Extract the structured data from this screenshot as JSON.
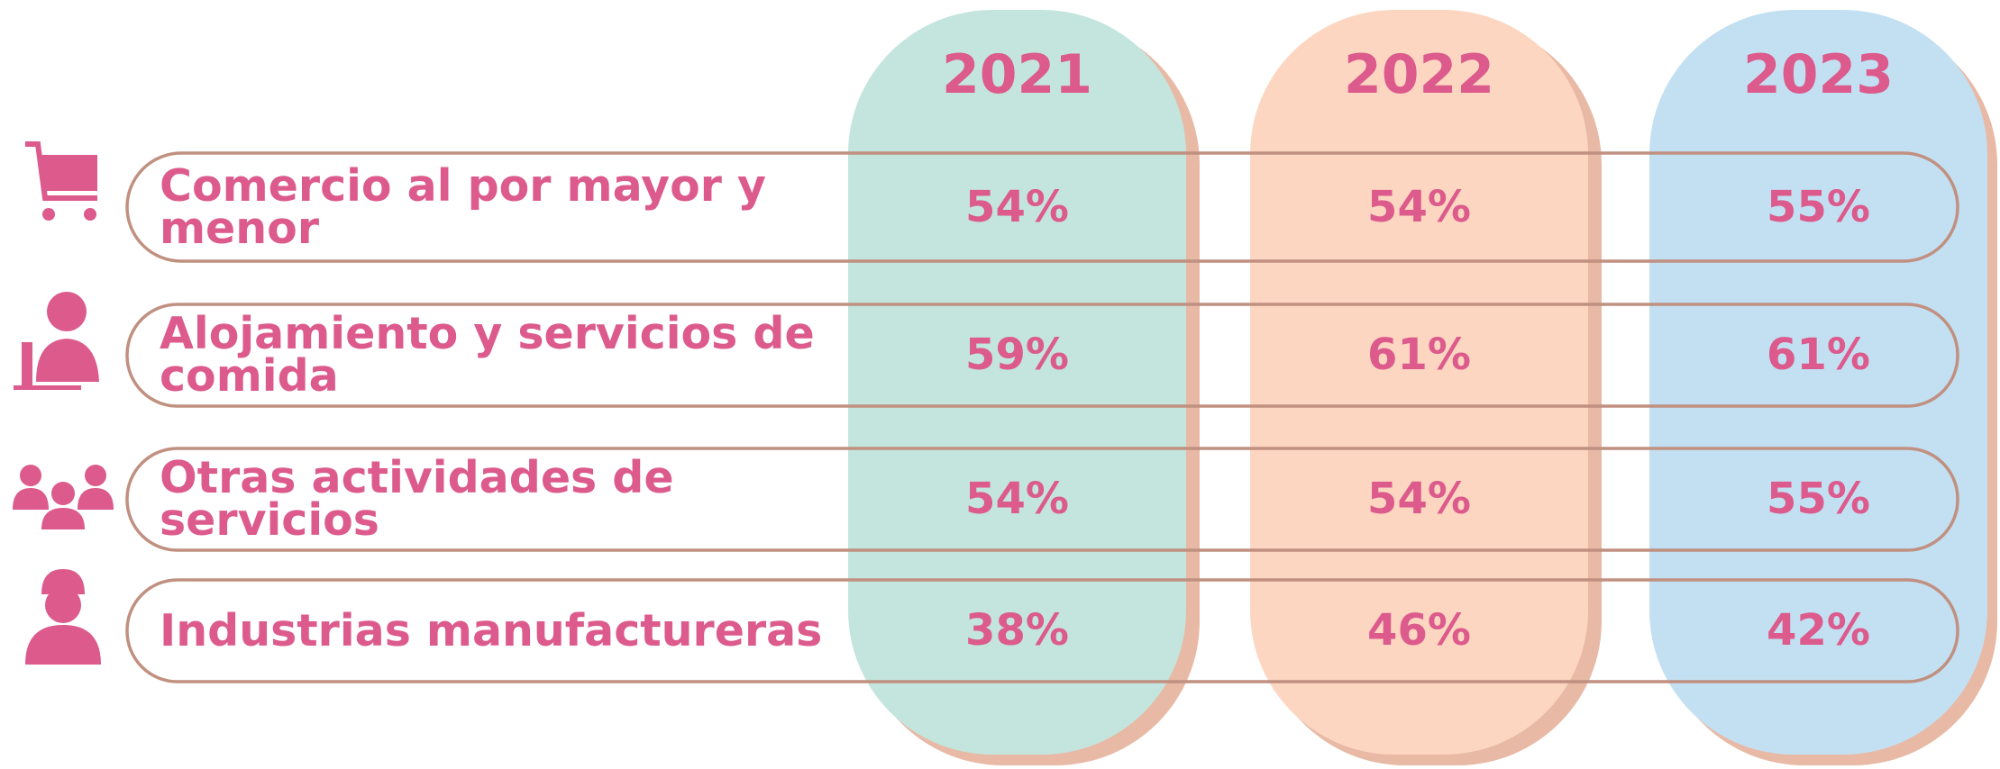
{
  "table": {
    "columns": [
      "2021",
      "2022",
      "2023"
    ],
    "rows": [
      {
        "label": "Comercio al por mayor y menor",
        "values": [
          "54%",
          "54%",
          "55%"
        ]
      },
      {
        "label": "Alojamiento y servicios de comida",
        "values": [
          "59%",
          "61%",
          "61%"
        ]
      },
      {
        "label": "Otras actividades de servicios",
        "values": [
          "54%",
          "54%",
          "55%"
        ]
      },
      {
        "label": "Industrias manufactureras",
        "values": [
          "38%",
          "46%",
          "42%"
        ]
      }
    ]
  }
}
